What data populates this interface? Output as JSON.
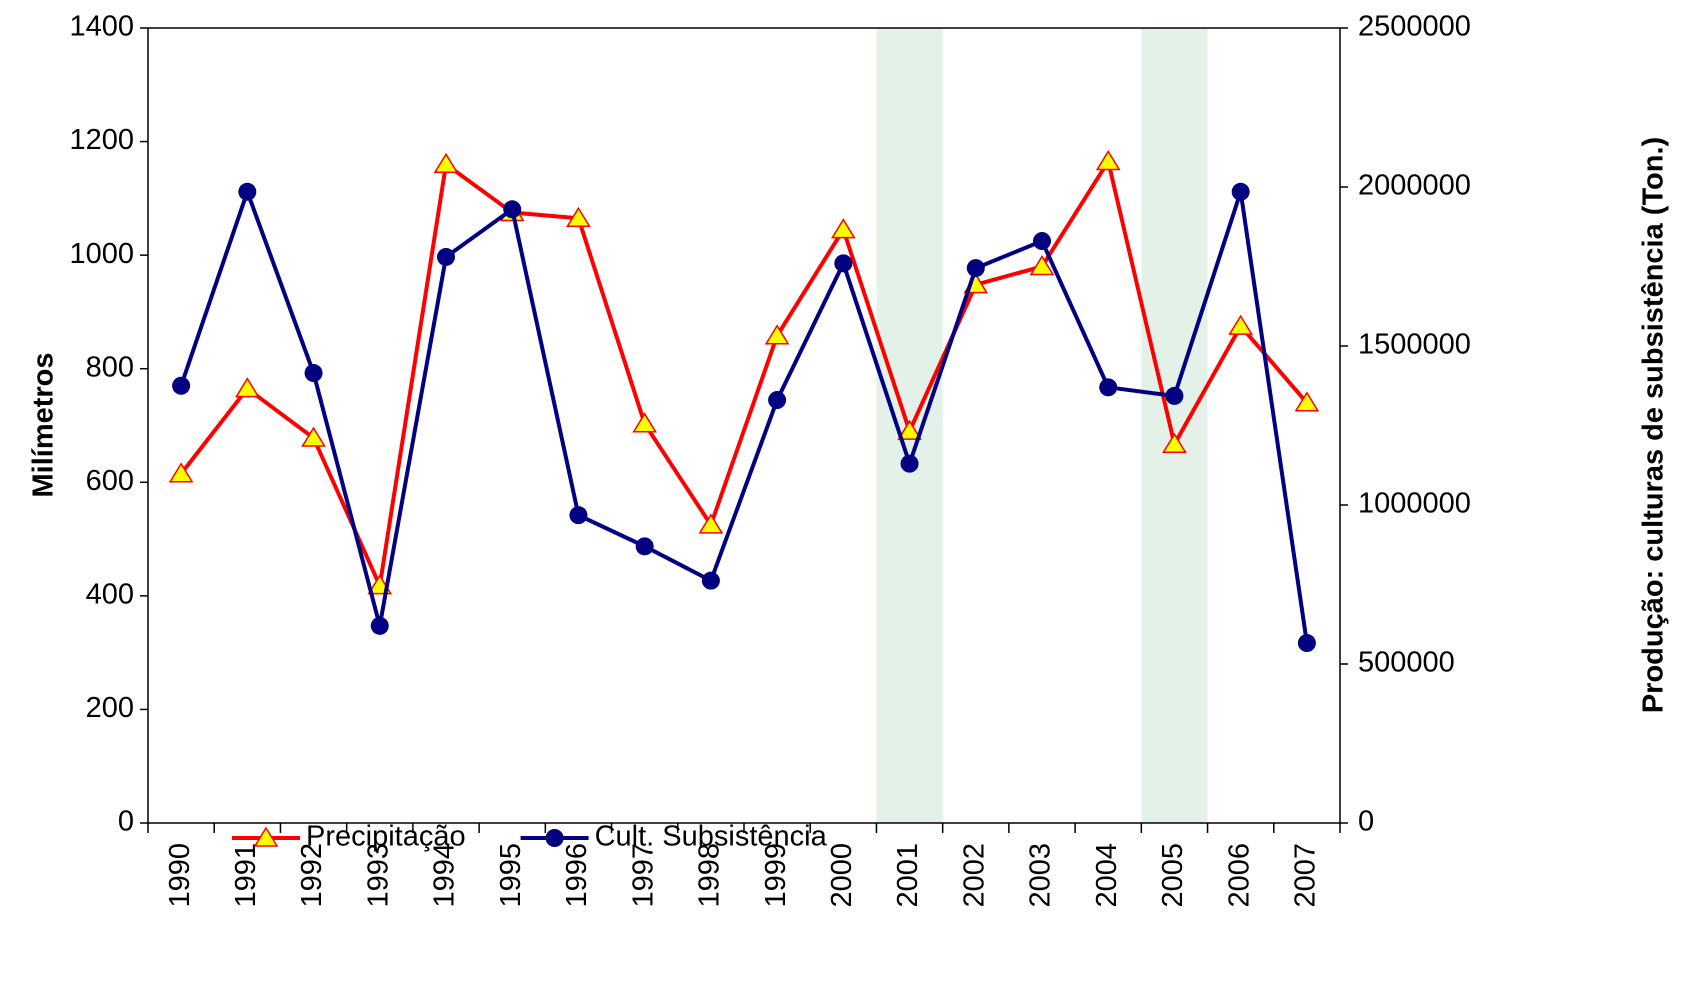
{
  "chart_data": {
    "type": "line",
    "ylabel": "Milímetros",
    "y2label": "Produção: culturas de subsistência (Ton.)",
    "categories": [
      "1990",
      "1991",
      "1992",
      "1993",
      "1994",
      "1995",
      "1996",
      "1997",
      "1998",
      "1999",
      "2000",
      "2001",
      "2002",
      "2003",
      "2004",
      "2005",
      "2006",
      "2007"
    ],
    "highlighted_categories": [
      "2001",
      "2005"
    ],
    "highlight_color": "#e4f1e8",
    "series": [
      {
        "name": "Precipitação",
        "color": "#ff0000",
        "marker": "triangle",
        "marker_color": "#ffff00",
        "values": [
          615,
          765,
          678,
          418,
          1160,
          1075,
          1065,
          703,
          525,
          858,
          1045,
          690,
          948,
          980,
          1165,
          667,
          875,
          740
        ]
      },
      {
        "name": "Cult. Subsistência",
        "color": "#000080",
        "marker": "circle",
        "marker_color": "#000080",
        "axis": "y2",
        "values": [
          1375000,
          1985000,
          1415000,
          620000,
          1780000,
          1930000,
          968000,
          870000,
          762000,
          1330000,
          1760000,
          1130000,
          1745000,
          1830000,
          1370000,
          1343000,
          1985000,
          566000
        ]
      }
    ],
    "ylim": [
      0,
      1400
    ],
    "yticks": [
      0,
      200,
      400,
      600,
      800,
      1000,
      1200,
      1400
    ],
    "y2lim": [
      0,
      2500000
    ],
    "y2ticks": [
      0,
      500000,
      1000000,
      1500000,
      2000000,
      2500000
    ],
    "legend": "lower left"
  }
}
